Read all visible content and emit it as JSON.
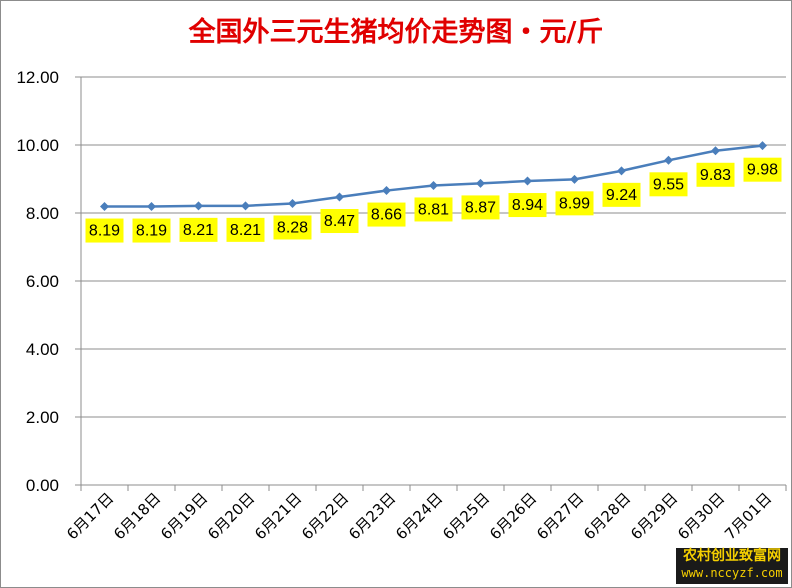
{
  "chart_data": {
    "type": "line",
    "title": "全国外三元生猪均价走势图・元/斤",
    "categories": [
      "6月17日",
      "6月18日",
      "6月19日",
      "6月20日",
      "6月21日",
      "6月22日",
      "6月23日",
      "6月24日",
      "6月25日",
      "6月26日",
      "6月27日",
      "6月28日",
      "6月29日",
      "6月30日",
      "7月01日"
    ],
    "series": [
      {
        "values": [
          8.19,
          8.19,
          8.21,
          8.21,
          8.28,
          8.47,
          8.66,
          8.81,
          8.87,
          8.94,
          8.99,
          9.24,
          9.55,
          9.83,
          9.98
        ]
      }
    ],
    "ylim": [
      0,
      12
    ],
    "yticks": [
      0,
      2,
      4,
      6,
      8,
      10,
      12
    ],
    "ytick_labels": [
      "0.00",
      "2.00",
      "4.00",
      "6.00",
      "8.00",
      "10.00",
      "12.00"
    ],
    "grid": true,
    "legend": "none",
    "line_color": "#4a7ebb",
    "label_bg": "#ffff00",
    "title_color": "#e00000"
  },
  "watermark": {
    "line1": "农村创业致富网",
    "line2": "www.nccyzf.com"
  }
}
